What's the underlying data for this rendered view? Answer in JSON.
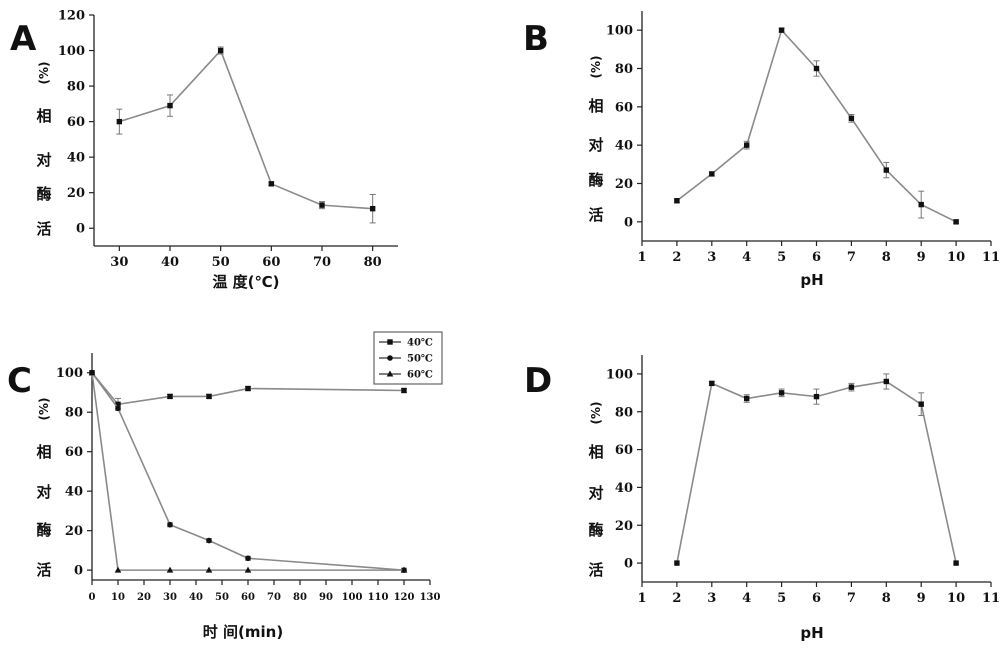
{
  "chart_data": [
    {
      "id": "A",
      "type": "line",
      "panel_label": "A",
      "ylabel_unit": "(%)",
      "ylabel": [
        "相",
        "对",
        "酶",
        "活"
      ],
      "xlabel": "温  度(℃)",
      "xlim": [
        25,
        85
      ],
      "ylim": [
        -10,
        120
      ],
      "xticks": [
        30,
        40,
        50,
        60,
        70,
        80
      ],
      "yticks": [
        0,
        20,
        40,
        60,
        80,
        100,
        120
      ],
      "series": [
        {
          "marker": "square",
          "x": [
            30,
            40,
            50,
            60,
            70,
            80
          ],
          "y": [
            60,
            69,
            100,
            25,
            13,
            11
          ],
          "err": [
            7,
            6,
            2,
            1,
            2,
            8
          ]
        }
      ]
    },
    {
      "id": "B",
      "type": "line",
      "panel_label": "B",
      "ylabel_unit": "(%)",
      "ylabel": [
        "相",
        "对",
        "酶",
        "活"
      ],
      "xlabel": "pH",
      "xlim": [
        1,
        11
      ],
      "ylim": [
        -10,
        110
      ],
      "xticks": [
        1,
        2,
        3,
        4,
        5,
        6,
        7,
        8,
        9,
        10,
        11
      ],
      "yticks": [
        0,
        20,
        40,
        60,
        80,
        100
      ],
      "series": [
        {
          "marker": "square",
          "x": [
            2,
            3,
            4,
            5,
            6,
            7,
            8,
            9,
            10
          ],
          "y": [
            11,
            25,
            40,
            100,
            80,
            54,
            27,
            9,
            0
          ],
          "err": [
            1,
            1,
            2,
            1,
            4,
            2,
            4,
            7,
            1
          ]
        }
      ]
    },
    {
      "id": "C",
      "type": "line",
      "panel_label": "C",
      "ylabel_unit": "(%)",
      "ylabel": [
        "相",
        "对",
        "酶",
        "活"
      ],
      "xlabel": "时  间(min)",
      "xlim": [
        0,
        130
      ],
      "ylim": [
        -5,
        110
      ],
      "xticks": [
        0,
        10,
        20,
        30,
        40,
        50,
        60,
        70,
        80,
        90,
        100,
        110,
        120,
        130
      ],
      "yticks": [
        0,
        20,
        40,
        60,
        80,
        100
      ],
      "legend_position": "top-right",
      "series": [
        {
          "name": "40℃",
          "marker": "square",
          "x": [
            0,
            10,
            30,
            45,
            60,
            120
          ],
          "y": [
            100,
            84,
            88,
            88,
            92,
            91
          ],
          "err": [
            0,
            3,
            1,
            1,
            1,
            1
          ]
        },
        {
          "name": "50℃",
          "marker": "circle",
          "x": [
            0,
            10,
            30,
            45,
            60,
            120
          ],
          "y": [
            100,
            82,
            23,
            15,
            6,
            0
          ],
          "err": [
            0,
            1,
            1,
            1,
            1,
            1
          ]
        },
        {
          "name": "60℃",
          "marker": "triangle",
          "x": [
            0,
            10,
            30,
            45,
            60,
            120
          ],
          "y": [
            100,
            0,
            0,
            0,
            0,
            0
          ],
          "err": [
            0,
            0,
            0,
            0,
            0,
            0
          ]
        }
      ]
    },
    {
      "id": "D",
      "type": "line",
      "panel_label": "D",
      "ylabel_unit": "(%)",
      "ylabel": [
        "相",
        "对",
        "酶",
        "活"
      ],
      "xlabel": "pH",
      "xlim": [
        1,
        11
      ],
      "ylim": [
        -10,
        110
      ],
      "xticks": [
        1,
        2,
        3,
        4,
        5,
        6,
        7,
        8,
        9,
        10,
        11
      ],
      "yticks": [
        0,
        20,
        40,
        60,
        80,
        100
      ],
      "series": [
        {
          "marker": "square",
          "x": [
            2,
            3,
            4,
            5,
            6,
            7,
            8,
            9,
            10
          ],
          "y": [
            0,
            95,
            87,
            90,
            88,
            93,
            96,
            84,
            0
          ],
          "err": [
            0,
            1,
            2,
            2,
            4,
            2,
            4,
            6,
            0
          ]
        }
      ]
    }
  ]
}
